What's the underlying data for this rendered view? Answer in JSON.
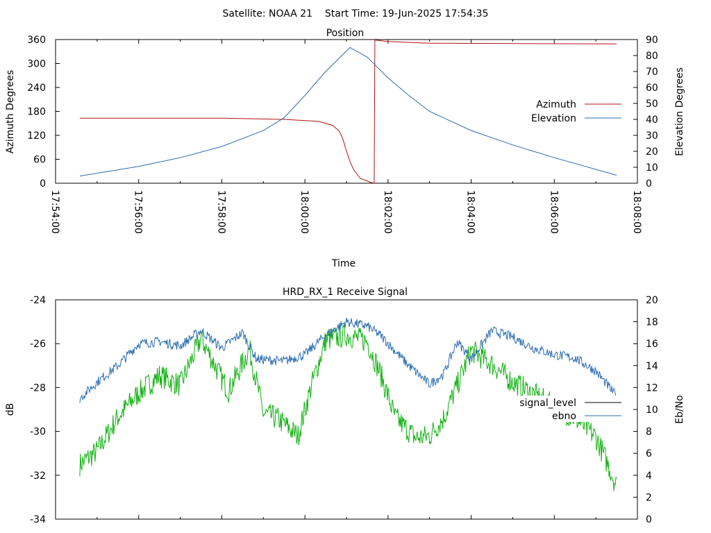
{
  "header": {
    "title": "Satellite: NOAA 21    Start Time: 19-Jun-2025 17:54:35"
  },
  "colors": {
    "azimuth": "#b01010",
    "elevation": "#2b6cb0",
    "signal_level": "#000000",
    "ebno": "#2b6cb0",
    "ebno_trace": "#10b010"
  },
  "chart_data": [
    {
      "type": "line",
      "title": "Position",
      "xlabel": "Time",
      "ylabel": "Azimuth Degrees",
      "y2label": "Elevation Degrees",
      "xlim": [
        "17:54:00",
        "18:08:00"
      ],
      "ylim": [
        0,
        360
      ],
      "y2lim": [
        0,
        90
      ],
      "xticks": [
        "17:54:00",
        "17:56:00",
        "17:58:00",
        "18:00:00",
        "18:02:00",
        "18:04:00",
        "18:06:00",
        "18:08:00"
      ],
      "yticks": [
        "0",
        "60",
        "120",
        "180",
        "240",
        "300",
        "360"
      ],
      "y2ticks": [
        "0",
        "10",
        "20",
        "30",
        "40",
        "50",
        "60",
        "70",
        "80",
        "90"
      ],
      "legend_position": "right",
      "series": [
        {
          "name": "Azimuth",
          "axis": "left",
          "x": [
            "17:54:35",
            "17:58:00",
            "17:59:30",
            "18:00:20",
            "18:00:40",
            "18:00:50",
            "18:00:55",
            "18:01:00",
            "18:01:05",
            "18:01:10",
            "18:01:20",
            "18:01:35",
            "18:01:40",
            "18:01:41",
            "18:02:00",
            "18:03:00",
            "18:05:00",
            "18:07:30"
          ],
          "values": [
            163,
            163,
            160,
            155,
            145,
            130,
            110,
            80,
            55,
            35,
            12,
            2,
            0,
            359,
            355,
            351,
            350,
            349
          ]
        },
        {
          "name": "Elevation",
          "axis": "right",
          "x": [
            "17:54:35",
            "17:56:00",
            "17:57:00",
            "17:58:00",
            "17:59:00",
            "17:59:30",
            "18:00:00",
            "18:00:30",
            "18:01:05",
            "18:01:30",
            "18:02:00",
            "18:02:30",
            "18:03:00",
            "18:04:00",
            "18:05:00",
            "18:06:00",
            "18:07:30"
          ],
          "values": [
            4.5,
            10.5,
            16,
            23,
            33,
            41,
            55,
            70,
            85,
            79,
            66,
            55,
            45,
            33,
            24,
            16,
            5
          ]
        }
      ]
    },
    {
      "type": "line",
      "title": "HRD_RX_1 Receive Signal",
      "xlabel": "",
      "ylabel": "dB",
      "y2label": "Eb/No",
      "xlim": [
        "17:54:00",
        "18:08:00"
      ],
      "ylim": [
        -34,
        -24
      ],
      "y2lim": [
        0,
        20
      ],
      "yticks": [
        "-34",
        "-32",
        "-30",
        "-28",
        "-26",
        "-24"
      ],
      "y2ticks": [
        "0",
        "2",
        "4",
        "6",
        "8",
        "10",
        "12",
        "14",
        "16",
        "18",
        "20"
      ],
      "legend_position": "right",
      "legend": [
        {
          "name": "signal_level",
          "color": "#000000"
        },
        {
          "name": "ebno",
          "color": "#2b6cb0"
        }
      ],
      "series": [
        {
          "name": "ebno",
          "axis": "right",
          "color": "#2b6cb0",
          "x": [
            "17:54:35",
            "17:55:00",
            "17:55:30",
            "17:56:00",
            "17:56:30",
            "17:57:00",
            "17:57:30",
            "17:58:00",
            "17:58:30",
            "17:58:50",
            "17:59:30",
            "18:00:00",
            "18:00:30",
            "18:01:00",
            "18:01:30",
            "18:01:50",
            "18:02:30",
            "18:03:00",
            "18:03:20",
            "18:03:40",
            "18:04:00",
            "18:04:30",
            "18:05:00",
            "18:05:30",
            "18:06:00",
            "18:06:30",
            "18:07:00",
            "18:07:30"
          ],
          "values": [
            11,
            12.5,
            14,
            16,
            16.2,
            15.8,
            17.2,
            15.6,
            17,
            14.6,
            14.4,
            15,
            16.8,
            18,
            17.6,
            16.7,
            14,
            12.3,
            13.2,
            16.2,
            14.6,
            17.2,
            16.6,
            15.6,
            15,
            14.7,
            13.5,
            11.2
          ]
        },
        {
          "name": "",
          "axis": "right",
          "color": "#10b010",
          "x": [
            "17:54:35",
            "17:55:00",
            "17:55:30",
            "17:56:00",
            "17:56:30",
            "17:57:00",
            "17:57:30",
            "17:58:00",
            "17:58:10",
            "17:58:40",
            "17:59:00",
            "17:59:20",
            "17:59:50",
            "18:00:10",
            "18:00:30",
            "18:01:00",
            "18:01:30",
            "18:01:50",
            "18:02:10",
            "18:02:40",
            "18:03:00",
            "18:03:20",
            "18:03:40",
            "18:04:00",
            "18:04:30",
            "18:05:00",
            "18:05:30",
            "18:06:00",
            "18:06:30",
            "18:07:00",
            "18:07:20",
            "18:07:30"
          ],
          "values": [
            5,
            6.2,
            9.3,
            11.5,
            13.1,
            12.2,
            16.5,
            12.8,
            11.7,
            15.5,
            9.6,
            9.2,
            7.6,
            12.3,
            16.3,
            16.8,
            16.2,
            13.1,
            9.3,
            7.4,
            7.6,
            9.2,
            12.2,
            15.4,
            14.1,
            12.5,
            11.4,
            10.3,
            9.2,
            7.5,
            4.6,
            3
          ]
        }
      ]
    }
  ]
}
